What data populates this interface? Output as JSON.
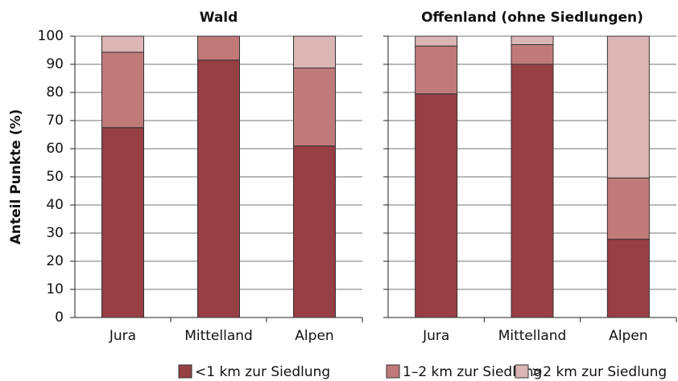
{
  "chart_data": [
    {
      "type": "bar",
      "stacked": true,
      "title": "Wald",
      "y_label": "Anteil Punkte (%)",
      "categories": [
        "Jura",
        "Mittelland",
        "Alpen"
      ],
      "series": [
        {
          "name": "<1 km zur Siedlung",
          "color": "#963f45",
          "values": [
            67.5,
            91.5,
            61
          ]
        },
        {
          "name": "1–2 km zur Siedlung",
          "color": "#c07a7a",
          "values": [
            26.8,
            8.5,
            27.7
          ]
        },
        {
          "name": ">2 km zur Siedlung",
          "color": "#dcb5b5",
          "values": [
            5.7,
            0,
            11.3
          ]
        }
      ],
      "ylim": [
        0,
        100
      ],
      "yticks": [
        0,
        10,
        20,
        30,
        40,
        50,
        60,
        70,
        80,
        90,
        100
      ],
      "grid": true
    },
    {
      "type": "bar",
      "stacked": true,
      "title": "Offenland (ohne Siedlungen)",
      "categories": [
        "Jura",
        "Mittelland",
        "Alpen"
      ],
      "series": [
        {
          "color": "#963f45",
          "values": [
            79.5,
            90,
            27.8
          ]
        },
        {
          "color": "#c07a7a",
          "values": [
            17,
            7,
            21.8
          ]
        },
        {
          "color": "#dcb5b5",
          "values": [
            3.5,
            3,
            50.4
          ]
        }
      ],
      "ylim": [
        0,
        100
      ],
      "yticks": [
        0,
        10,
        20,
        30,
        40,
        50,
        60,
        70,
        80,
        90,
        100
      ],
      "grid": true
    }
  ]
}
